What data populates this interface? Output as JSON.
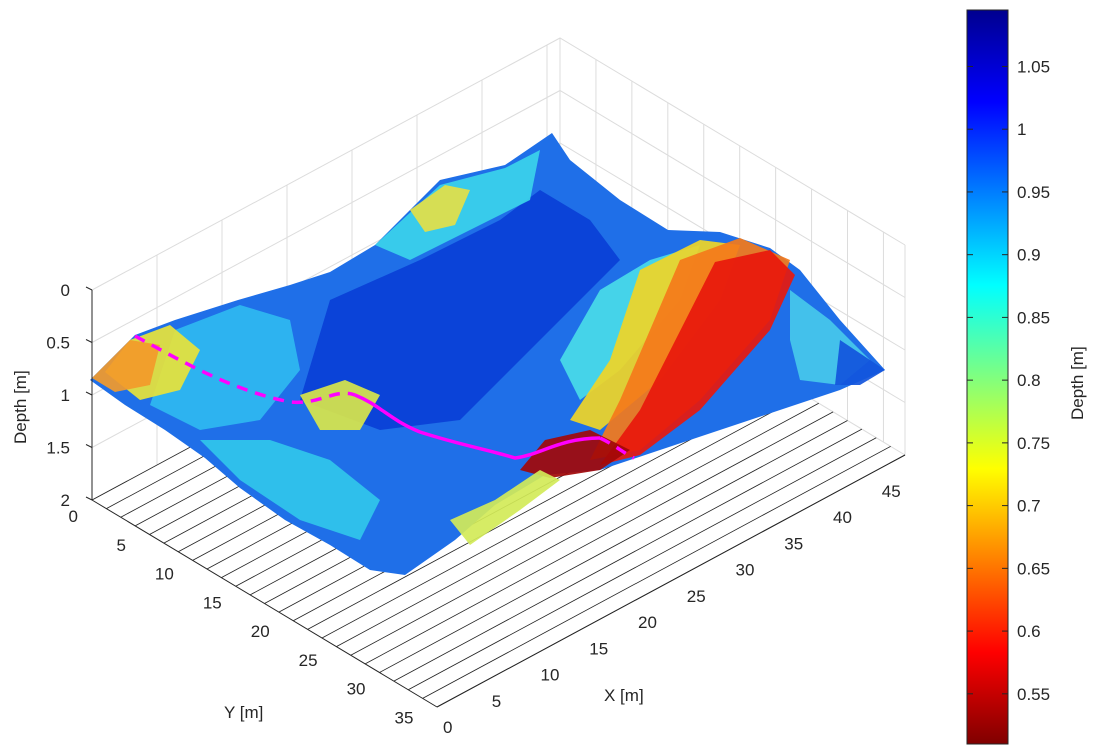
{
  "chart_data": {
    "type": "surface",
    "title": "",
    "xlabel": "X [m]",
    "ylabel": "Y [m]",
    "zlabel": "Depth [m]",
    "colorbar_label": "Depth [m]",
    "xlim": [
      0,
      48
    ],
    "ylim": [
      0,
      36
    ],
    "zlim": [
      0,
      2
    ],
    "z_direction": "reverse",
    "grid": true,
    "colormap": "jet",
    "color_range": [
      0.51,
      1.095
    ],
    "x_ticks": [
      "0",
      "5",
      "10",
      "15",
      "20",
      "25",
      "30",
      "35",
      "40",
      "45"
    ],
    "y_ticks": [
      "0",
      "5",
      "10",
      "15",
      "20",
      "25",
      "30",
      "35"
    ],
    "z_ticks": [
      "0",
      "0.5",
      "1",
      "1.5",
      "2"
    ],
    "colorbar_ticks": [
      {
        "value": 0.55,
        "label": "0.55"
      },
      {
        "value": 0.6,
        "label": "0.6"
      },
      {
        "value": 0.65,
        "label": "0.65"
      },
      {
        "value": 0.7,
        "label": "0.7"
      },
      {
        "value": 0.75,
        "label": "0.75"
      },
      {
        "value": 0.8,
        "label": "0.8"
      },
      {
        "value": 0.85,
        "label": "0.85"
      },
      {
        "value": 0.9,
        "label": "0.9"
      },
      {
        "value": 0.95,
        "label": "0.95"
      },
      {
        "value": 1.0,
        "label": "1"
      },
      {
        "value": 1.05,
        "label": "1.05"
      }
    ],
    "surface": {
      "depth_range_m": [
        0.51,
        1.095
      ],
      "ridge_shallow_along_x_m": 38
    },
    "profile_line": {
      "color": "#ff00ff",
      "style": "solid with dashed far section",
      "x_m": 3,
      "y_m": [
        0,
        8,
        16,
        24,
        28,
        36
      ]
    }
  }
}
